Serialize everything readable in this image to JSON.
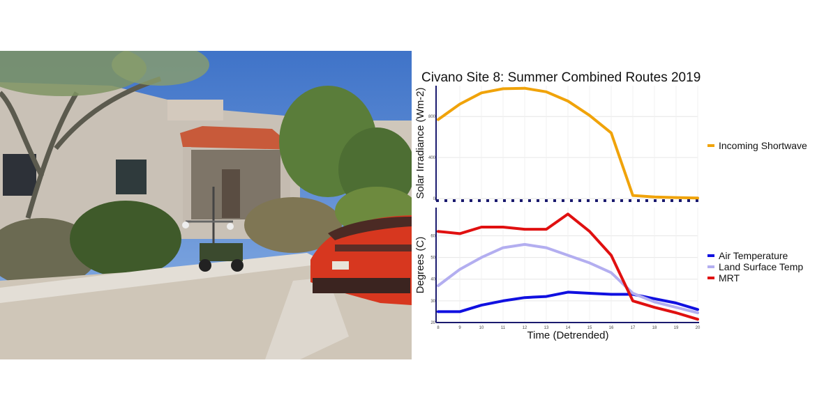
{
  "photo": {
    "caption": ""
  },
  "chart_data": {
    "type": "line",
    "title": "Civano Site 8: Summer Combined Routes 2019",
    "xlabel": "Time (Detrended)",
    "x": [
      8,
      9,
      10,
      11,
      12,
      13,
      14,
      15,
      16,
      17,
      18,
      19,
      20
    ],
    "x_ticks": [
      "8",
      "9",
      "10",
      "11",
      "12",
      "13",
      "14",
      "15",
      "16",
      "17",
      "18",
      "19",
      "20"
    ],
    "grid": true,
    "panels": [
      {
        "ylabel": "Solar Irradiance (Wm-2)",
        "ylim": [
          -20,
          1100
        ],
        "y_ticks": [
          0,
          400,
          800
        ],
        "y_tick_labels": [
          "0",
          "400",
          "800"
        ],
        "legend_position": "right",
        "series": [
          {
            "name": "Incoming Shortwave",
            "color": "#f0a30a",
            "values": [
              770,
              920,
              1030,
              1070,
              1075,
              1040,
              950,
              810,
              640,
              30,
              15,
              10,
              5
            ]
          }
        ]
      },
      {
        "ylabel": "Degrees (C)",
        "ylim": [
          20,
          73
        ],
        "y_ticks": [
          20,
          30,
          40,
          50,
          60
        ],
        "y_tick_labels": [
          "20",
          "30",
          "40",
          "50",
          "60"
        ],
        "legend_position": "right",
        "series": [
          {
            "name": "Air Temperature",
            "color": "#1010e0",
            "values": [
              25,
              25,
              28,
              30,
              31.5,
              32,
              34,
              33.5,
              33,
              33,
              31,
              29,
              26
            ]
          },
          {
            "name": "Land Surface Temp",
            "color": "#b3aef0",
            "values": [
              37,
              44.5,
              50,
              54.5,
              56,
              54.5,
              51,
              47.5,
              43,
              33.5,
              29.5,
              27,
              24.5
            ]
          },
          {
            "name": "MRT",
            "color": "#e01010",
            "values": [
              62,
              61,
              64,
              64,
              63,
              63,
              70,
              62,
              51,
              30,
              27,
              24.5,
              21.5
            ]
          }
        ]
      }
    ]
  }
}
